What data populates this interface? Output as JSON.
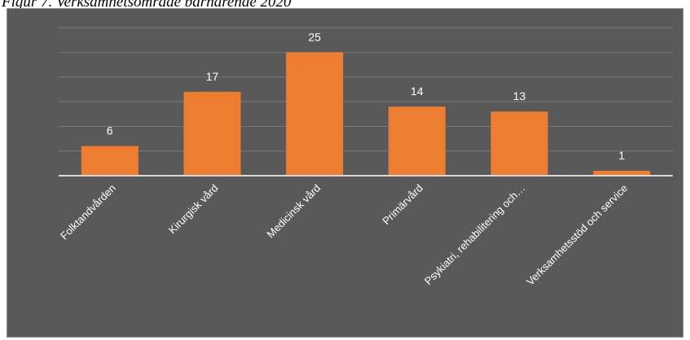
{
  "caption": "Figur 7. Verksamhetsområde barnärende 2020",
  "colors": {
    "background": "#595959",
    "bar": "#ed7d31",
    "gridline": "#7a7a7a",
    "axis": "#d9d9d9",
    "text": "#ffffff"
  },
  "chart_data": {
    "type": "bar",
    "title": "",
    "xlabel": "",
    "ylabel": "",
    "categories": [
      "Folktandvården",
      "Kirurgisk vård",
      "Medicinsk vård",
      "Primärvård",
      "Psykiatri, rehabilitering och…",
      "Verksamhetsstöd och service"
    ],
    "values": [
      6,
      17,
      25,
      14,
      13,
      1
    ],
    "ylim": [
      0,
      30
    ],
    "grid": true,
    "legend": "none",
    "data_labels": true
  }
}
